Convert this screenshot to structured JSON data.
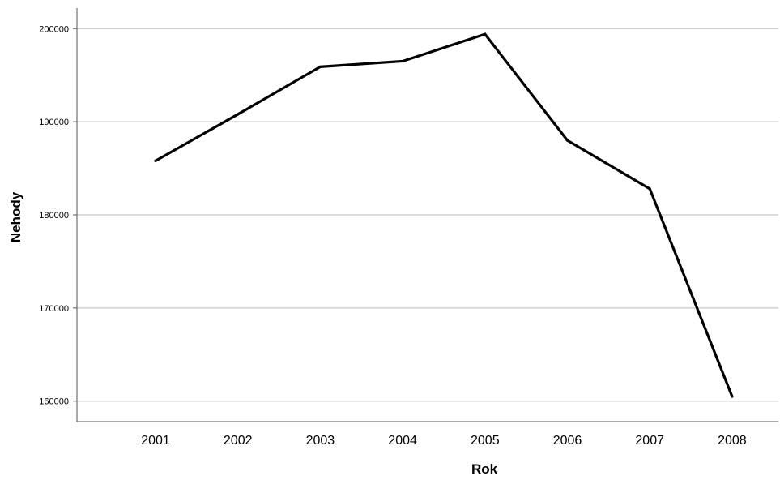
{
  "chart_data": {
    "type": "line",
    "title": "",
    "xlabel": "Rok",
    "ylabel": "Nehody",
    "categories": [
      "2001",
      "2002",
      "2003",
      "2004",
      "2005",
      "2006",
      "2007",
      "2008"
    ],
    "series": [
      {
        "values": [
          185800,
          190800,
          195900,
          196500,
          199400,
          188000,
          182800,
          160500
        ],
        "color": "#000000"
      }
    ],
    "y_ticks": [
      "160000",
      "170000",
      "180000",
      "190000",
      "200000"
    ],
    "ylim": [
      157800,
      202200
    ],
    "grid": {
      "horizontal": true,
      "vertical": false,
      "color": "#c8c8c8"
    }
  }
}
